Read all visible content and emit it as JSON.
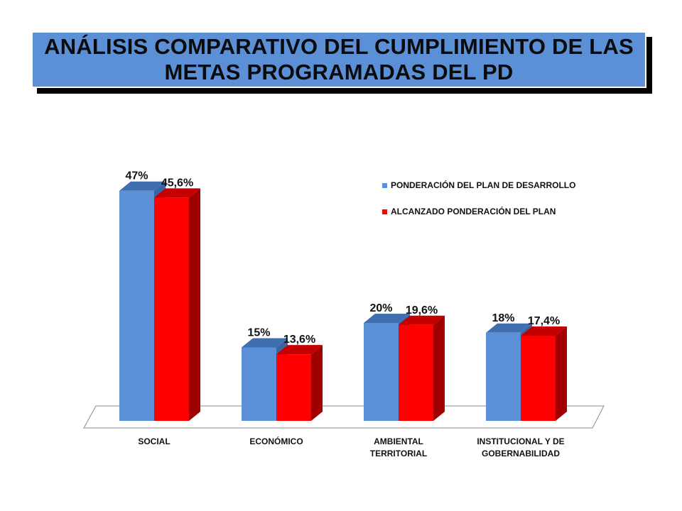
{
  "title": "ANÁLISIS COMPARATIVO DEL CUMPLIMIENTO DE LAS METAS PROGRAMADAS DEL PD",
  "colors": {
    "title_bg": "#5b8fd6",
    "series_blue": "#5b8fd6",
    "series_blue_top": "#3f6fb0",
    "series_blue_side": "#3a64a3",
    "series_red": "#ff0000",
    "series_red_top": "#c40000",
    "series_red_side": "#a00000"
  },
  "chart_data": {
    "type": "bar",
    "subtype": "3d-clustered",
    "categories": [
      [
        "SOCIAL"
      ],
      [
        "ECONÓMICO"
      ],
      [
        "AMBIENTAL",
        "TERRITORIAL"
      ],
      [
        "INSTITUCIONAL Y DE",
        "GOBERNABILIDAD"
      ]
    ],
    "series": [
      {
        "name": "PONDERACIÓN DEL PLAN DE DESARROLLO",
        "values": [
          47,
          15,
          20,
          18
        ],
        "labels": [
          "47%",
          "15%",
          "20%",
          "18%"
        ],
        "color": "#5b8fd6"
      },
      {
        "name": "ALCANZADO PONDERACIÓN DEL PLAN",
        "values": [
          45.6,
          13.6,
          19.6,
          17.4
        ],
        "labels": [
          "45,6%",
          "13,6%",
          "19,6%",
          "17,4%"
        ],
        "color": "#ff0000"
      }
    ],
    "ylim": [
      0,
      50
    ],
    "grid": false,
    "legend_position": "top-right",
    "xlabel": "",
    "ylabel": ""
  }
}
